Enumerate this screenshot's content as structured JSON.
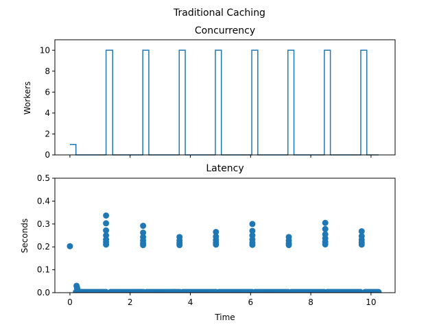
{
  "figure": {
    "suptitle": "Traditional Caching"
  },
  "colors": {
    "series": "#1f77b4",
    "axes": "#000000",
    "background": "#ffffff"
  },
  "chart_data": [
    {
      "type": "line",
      "title": "Concurrency",
      "xlabel": "",
      "ylabel": "Workers",
      "xlim": [
        -0.5,
        10.8
      ],
      "ylim": [
        0,
        11
      ],
      "yticks": [
        0,
        2,
        4,
        6,
        8,
        10
      ],
      "xticks": [
        0,
        2,
        4,
        6,
        8,
        10
      ],
      "show_xtick_labels": false,
      "grid": false,
      "step": true,
      "series": [
        {
          "x": [
            0,
            0.2,
            0.2,
            1.2,
            1.2,
            1.42,
            1.42,
            2.42,
            2.42,
            2.62,
            2.62,
            3.63,
            3.63,
            3.83,
            3.83,
            4.83,
            4.83,
            5.03,
            5.03,
            6.04,
            6.04,
            6.24,
            6.24,
            7.24,
            7.24,
            7.44,
            7.44,
            8.45,
            8.45,
            8.65,
            8.65,
            9.66,
            9.66,
            9.86,
            9.86,
            10.25
          ],
          "y": [
            1,
            1,
            0,
            0,
            10,
            10,
            0,
            0,
            10,
            10,
            0,
            0,
            10,
            10,
            0,
            0,
            10,
            10,
            0,
            0,
            10,
            10,
            0,
            0,
            10,
            10,
            0,
            0,
            10,
            10,
            0,
            0,
            10,
            10,
            0,
            0
          ]
        }
      ]
    },
    {
      "type": "scatter",
      "title": "Latency",
      "xlabel": "Time",
      "ylabel": "Seconds",
      "xlim": [
        -0.5,
        10.8
      ],
      "ylim": [
        0,
        0.5
      ],
      "yticks": [
        0.0,
        0.1,
        0.2,
        0.3,
        0.4,
        0.5
      ],
      "xticks": [
        0,
        2,
        4,
        6,
        8,
        10
      ],
      "grid": false,
      "series": [
        {
          "points": [
            [
              0.0,
              0.203
            ],
            [
              0.22,
              0.03
            ],
            [
              0.23,
              0.025
            ],
            [
              0.24,
              0.02
            ],
            [
              0.25,
              0.015
            ],
            [
              1.2,
              0.337
            ],
            [
              1.2,
              0.303
            ],
            [
              1.2,
              0.272
            ],
            [
              1.2,
              0.25
            ],
            [
              1.2,
              0.232
            ],
            [
              1.2,
              0.22
            ],
            [
              1.2,
              0.21
            ],
            [
              2.43,
              0.292
            ],
            [
              2.43,
              0.262
            ],
            [
              2.43,
              0.243
            ],
            [
              2.43,
              0.228
            ],
            [
              2.43,
              0.216
            ],
            [
              2.43,
              0.208
            ],
            [
              3.64,
              0.243
            ],
            [
              3.64,
              0.228
            ],
            [
              3.64,
              0.217
            ],
            [
              3.64,
              0.208
            ],
            [
              4.85,
              0.265
            ],
            [
              4.85,
              0.245
            ],
            [
              4.85,
              0.23
            ],
            [
              4.85,
              0.218
            ],
            [
              4.85,
              0.21
            ],
            [
              6.06,
              0.3
            ],
            [
              6.06,
              0.27
            ],
            [
              6.06,
              0.25
            ],
            [
              6.06,
              0.232
            ],
            [
              6.06,
              0.218
            ],
            [
              6.06,
              0.209
            ],
            [
              7.27,
              0.243
            ],
            [
              7.27,
              0.228
            ],
            [
              7.27,
              0.216
            ],
            [
              7.27,
              0.208
            ],
            [
              8.48,
              0.305
            ],
            [
              8.48,
              0.278
            ],
            [
              8.48,
              0.255
            ],
            [
              8.48,
              0.237
            ],
            [
              8.48,
              0.222
            ],
            [
              8.48,
              0.211
            ],
            [
              9.69,
              0.268
            ],
            [
              9.69,
              0.247
            ],
            [
              9.69,
              0.231
            ],
            [
              9.69,
              0.219
            ],
            [
              9.69,
              0.21
            ]
          ],
          "baseline": {
            "y": 0.003,
            "ranges": [
              [
                0.2,
                1.2
              ],
              [
                1.35,
                2.45
              ],
              [
                2.55,
                3.65
              ],
              [
                3.75,
                4.85
              ],
              [
                4.95,
                6.05
              ],
              [
                6.15,
                7.25
              ],
              [
                7.35,
                8.45
              ],
              [
                8.55,
                9.65
              ],
              [
                9.8,
                10.25
              ]
            ],
            "step": 0.05
          }
        }
      ]
    }
  ]
}
